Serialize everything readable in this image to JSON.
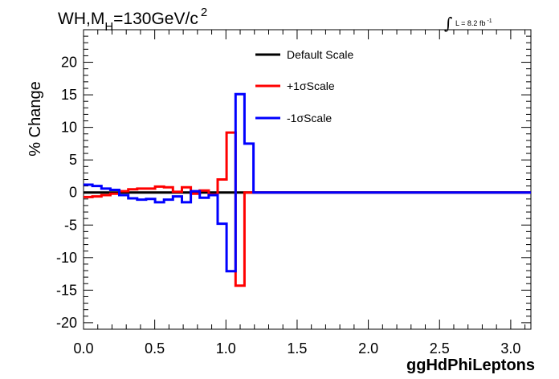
{
  "chart_data": {
    "type": "line",
    "title_parts": {
      "main": "WH,M",
      "sub": "H",
      "rest": "=130GeV/c",
      "sup": "2"
    },
    "lumi_label": "L = 8.2 fb",
    "lumi_sup": "-1",
    "integral_symbol": "∫",
    "xlabel": "ggHdPhiLeptons",
    "ylabel": "% Change",
    "xlim": [
      0,
      3.1416
    ],
    "ylim": [
      -21,
      25
    ],
    "x_ticks": [
      0.0,
      0.5,
      1.0,
      1.5,
      2.0,
      2.5,
      3.0
    ],
    "x_tick_labels": [
      "0.0",
      "0.5",
      "1.0",
      "1.5",
      "2.0",
      "2.5",
      "3.0"
    ],
    "y_ticks": [
      -20,
      -15,
      -10,
      -5,
      0,
      5,
      10,
      15,
      20
    ],
    "y_tick_labels": [
      "-20",
      "-15",
      "-10",
      "-5",
      "0",
      "5",
      "10",
      "15",
      "20"
    ],
    "bin_width": 0.0628,
    "series": [
      {
        "name": "Default Scale",
        "color": "#000000",
        "values": [
          0,
          0,
          0,
          0,
          0,
          0,
          0,
          0,
          0,
          0,
          0,
          0,
          0,
          0,
          0,
          0,
          0,
          0,
          0,
          0,
          0,
          0,
          0,
          0,
          0,
          0,
          0,
          0,
          0,
          0,
          0,
          0,
          0,
          0,
          0,
          0,
          0,
          0,
          0,
          0,
          0,
          0,
          0,
          0,
          0,
          0,
          0,
          0,
          0,
          0
        ]
      },
      {
        "name": "+1σScale",
        "color": "#ff0000",
        "values": [
          -0.7,
          -0.6,
          -0.4,
          -0.2,
          0.2,
          0.5,
          0.6,
          0.6,
          0.9,
          0.8,
          0.1,
          0.8,
          -0.2,
          0.3,
          -0.3,
          2.0,
          9.2,
          -14.3,
          0,
          0,
          0,
          0,
          0,
          0,
          0,
          0,
          0,
          0,
          0,
          0,
          0,
          0,
          0,
          0,
          0,
          0,
          0,
          0,
          0,
          0,
          0,
          0,
          0,
          0,
          0,
          0,
          0,
          0,
          0,
          0
        ]
      },
      {
        "name": "-1σScale",
        "color": "#0000ff",
        "values": [
          1.2,
          1.0,
          0.6,
          0.4,
          -0.4,
          -0.9,
          -1.1,
          -1.0,
          -1.5,
          -1.1,
          -0.6,
          -1.5,
          0.2,
          -0.8,
          -0.4,
          -4.8,
          -12.1,
          15.1,
          7.5,
          0,
          0,
          0,
          0,
          0,
          0,
          0,
          0,
          0,
          0,
          0,
          0,
          0,
          0,
          0,
          0,
          0,
          0,
          0,
          0,
          0,
          0,
          0,
          0,
          0,
          0,
          0,
          0,
          0,
          0,
          0,
          0
        ]
      }
    ],
    "legend_position": "top-center",
    "grid": false
  }
}
